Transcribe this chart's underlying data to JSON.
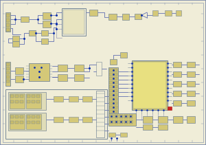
{
  "bg_color": "#f0edd8",
  "border_color": "#7788aa",
  "wire_color": "#4455aa",
  "component_fill": "#d4c878",
  "component_fill2": "#c8bc6a",
  "component_edge": "#778899",
  "dot_color": "#1133aa",
  "text_color": "#334466",
  "gray_wire": "#9999bb",
  "figsize": [
    3.0,
    2.11
  ],
  "dpi": 100
}
